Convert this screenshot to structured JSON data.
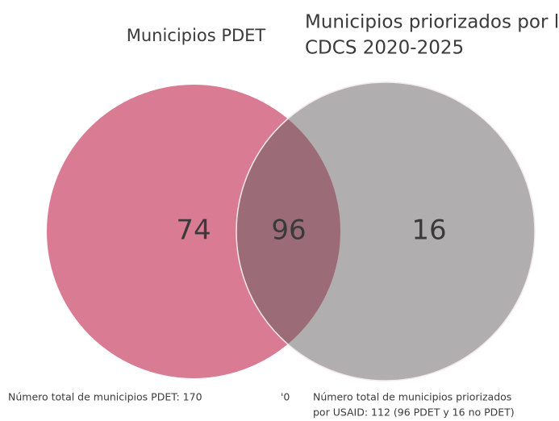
{
  "chart_data": {
    "type": "venn",
    "set_labels": [
      [
        "Municipios PDET"
      ],
      [
        "Municipios priorizados por la",
        "CDCS 2020-2025"
      ]
    ],
    "values": [
      74,
      96,
      16
    ],
    "colors": [
      "#d97b92",
      "#b1aeaf",
      "#9c6b78"
    ],
    "notes": [
      [
        "Número total de municipios PDET: 170"
      ],
      [
        "'0"
      ],
      [
        "Número total de municipios priorizados",
        "por USAID: 112 (96 PDET y 16 no PDET)"
      ]
    ]
  }
}
